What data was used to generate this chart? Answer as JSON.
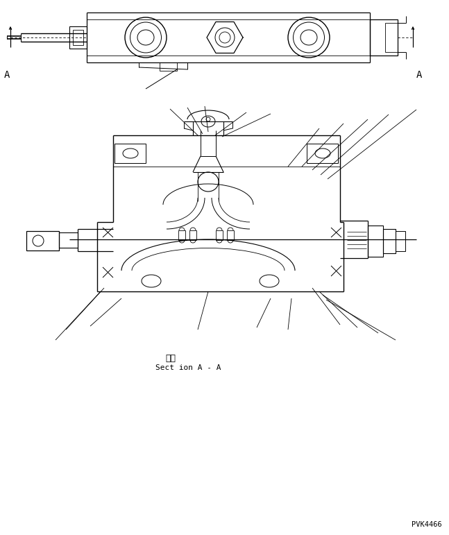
{
  "bg_color": "#ffffff",
  "line_color": "#000000",
  "fig_width": 6.47,
  "fig_height": 7.71,
  "dpi": 100,
  "label_A_left": "A",
  "label_A_right": "A",
  "section_label_jp": "断面",
  "section_label_en": "Sect ion A - A",
  "code_label": "PVK4466"
}
